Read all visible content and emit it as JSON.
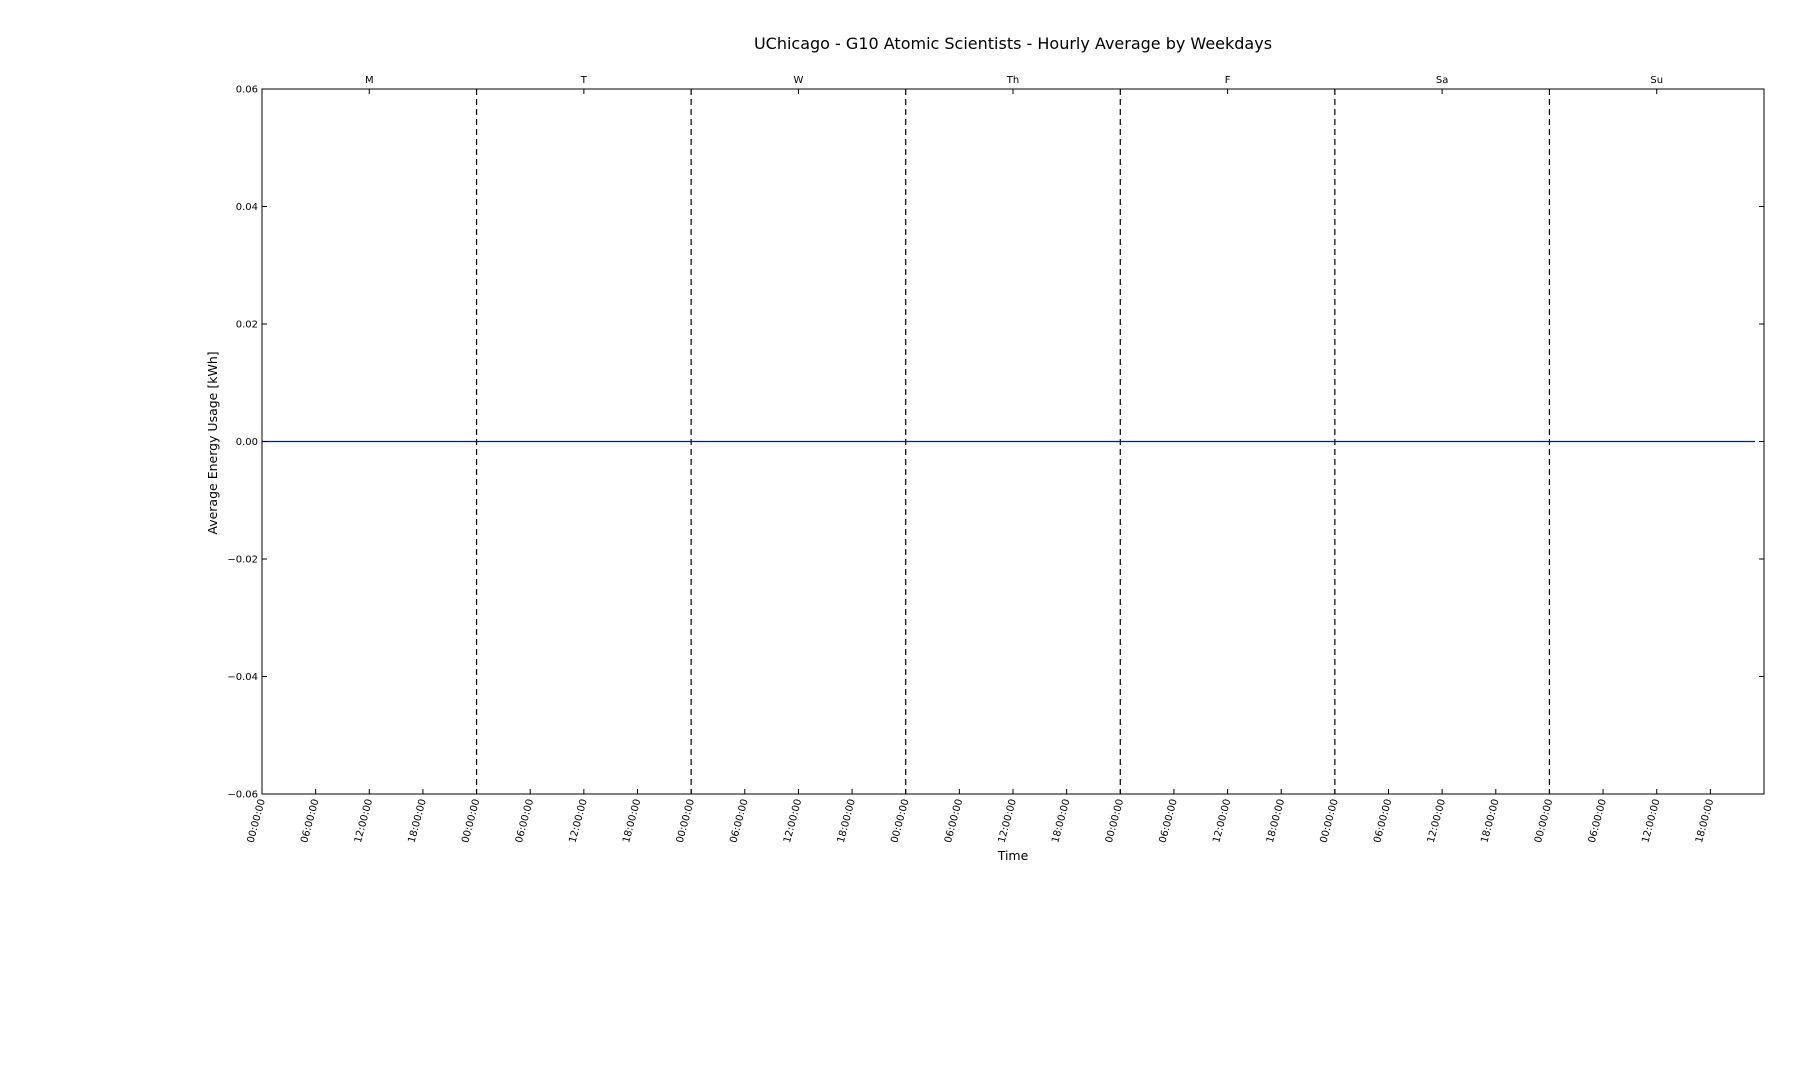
{
  "chart_data": {
    "type": "line",
    "title": "UChicago - G10 Atomic Scientists - Hourly Average by Weekdays",
    "xlabel": "Time",
    "ylabel": "Average Energy Usage [kWh]",
    "ylim": [
      -0.06,
      0.06
    ],
    "xlim": [
      0,
      168
    ],
    "y_ticks": [
      0.06,
      0.04,
      0.02,
      0.0,
      -0.02,
      -0.04,
      -0.06
    ],
    "y_tick_labels": [
      "0.06",
      "0.04",
      "0.02",
      "0.00",
      "−0.02",
      "−0.04",
      "−0.06"
    ],
    "x_tick_hours": [
      0,
      6,
      12,
      18,
      24,
      30,
      36,
      42,
      48,
      54,
      60,
      66,
      72,
      78,
      84,
      90,
      96,
      102,
      108,
      114,
      120,
      126,
      132,
      138,
      144,
      150,
      156,
      162
    ],
    "x_tick_labels": [
      "00:00:00",
      "06:00:00",
      "12:00:00",
      "18:00:00",
      "00:00:00",
      "06:00:00",
      "12:00:00",
      "18:00:00",
      "00:00:00",
      "06:00:00",
      "12:00:00",
      "18:00:00",
      "00:00:00",
      "06:00:00",
      "12:00:00",
      "18:00:00",
      "00:00:00",
      "06:00:00",
      "12:00:00",
      "18:00:00",
      "00:00:00",
      "06:00:00",
      "12:00:00",
      "18:00:00",
      "00:00:00",
      "06:00:00",
      "12:00:00",
      "18:00:00"
    ],
    "day_labels": [
      "M",
      "T",
      "W",
      "Th",
      "F",
      "Sa",
      "Su"
    ],
    "day_label_hours": [
      12,
      36,
      60,
      84,
      108,
      132,
      156
    ],
    "day_separator_hours": [
      24,
      48,
      72,
      96,
      120,
      144
    ],
    "grid": false,
    "series": [
      {
        "color": "#0000ff",
        "x": [
          0,
          167
        ],
        "y": [
          0.0,
          0.0
        ]
      }
    ],
    "separator_color": "#000000"
  }
}
